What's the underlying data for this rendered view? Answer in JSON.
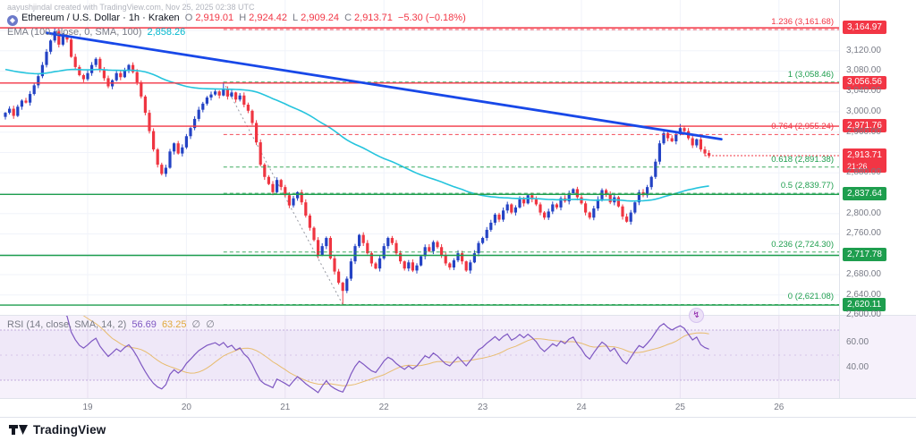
{
  "header": {
    "watermark": "aayushjindal created with TradingView.com, Nov 25, 2025 02:38 UTC"
  },
  "legend": {
    "title": "Ethereum / U.S. Dollar · 1h · Kraken",
    "o_label": "O",
    "o": "2,919.01",
    "h_label": "H",
    "h": "2,924.42",
    "l_label": "L",
    "l": "2,909.24",
    "c_label": "C",
    "c": "2,913.71",
    "change": "−5.30 (−0.18%)"
  },
  "ema_row": {
    "title": "EMA (100, close, 0, SMA, 100)",
    "value": "2,858.26"
  },
  "rsi_row": {
    "title": "RSI (14, close, SMA, 14, 2)",
    "v1": "56.69",
    "v2": "63.25",
    "na1": "∅",
    "na2": "∅"
  },
  "footer": {
    "logo_text": "TradingView"
  },
  "icons": {
    "symbol_logo_glyph": "◆",
    "rsi_flash_glyph": "↯"
  },
  "colors": {
    "up": "#2443c4",
    "down": "#ef3541",
    "ema": "#25c4dd",
    "trend": "#1848e8",
    "line_red": "#f23645",
    "line_green": "#1e9e4e",
    "fib_red": "#f23645",
    "fib_green": "#2ba24f",
    "grid": "#f0f3fa",
    "rsi_line": "#7e57c2",
    "rsi_ma": "#e7b75f",
    "dotted": "#9598a1"
  },
  "chart_data": {
    "type": "candlestick",
    "symbol": "Ethereum / U.S. Dollar",
    "interval": "1h",
    "exchange": "Kraken",
    "ylim": [
      2600,
      3172
    ],
    "grid_prices": [
      2600,
      2640,
      2680,
      2720,
      2760,
      2800,
      2840,
      2880,
      2920,
      2960,
      3000,
      3040,
      3080,
      3120,
      3160
    ],
    "first_open": 2990,
    "closes": [
      2998,
      3006,
      2992,
      3010,
      3022,
      3018,
      3035,
      3052,
      3070,
      3092,
      3118,
      3140,
      3158,
      3132,
      3150,
      3142,
      3108,
      3088,
      3072,
      3064,
      3076,
      3092,
      3104,
      3082,
      3066,
      3050,
      3062,
      3076,
      3068,
      3082,
      3092,
      3078,
      3058,
      3030,
      2998,
      2962,
      2926,
      2896,
      2878,
      2890,
      2922,
      2938,
      2918,
      2930,
      2952,
      2968,
      2986,
      3004,
      3016,
      3028,
      3034,
      3040,
      3032,
      3044,
      3030,
      3038,
      3024,
      3032,
      3014,
      3002,
      2978,
      2940,
      2896,
      2872,
      2858,
      2842,
      2866,
      2852,
      2836,
      2816,
      2830,
      2842,
      2822,
      2796,
      2772,
      2748,
      2718,
      2736,
      2752,
      2712,
      2686,
      2664,
      2648,
      2672,
      2706,
      2736,
      2758,
      2742,
      2722,
      2702,
      2692,
      2712,
      2736,
      2752,
      2742,
      2722,
      2706,
      2692,
      2704,
      2688,
      2698,
      2716,
      2734,
      2726,
      2744,
      2734,
      2718,
      2702,
      2694,
      2708,
      2722,
      2706,
      2688,
      2704,
      2722,
      2742,
      2752,
      2768,
      2782,
      2798,
      2788,
      2806,
      2818,
      2802,
      2812,
      2828,
      2820,
      2836,
      2828,
      2818,
      2802,
      2792,
      2804,
      2818,
      2812,
      2830,
      2824,
      2840,
      2848,
      2832,
      2820,
      2802,
      2792,
      2810,
      2828,
      2846,
      2838,
      2822,
      2832,
      2814,
      2794,
      2784,
      2802,
      2822,
      2842,
      2836,
      2852,
      2872,
      2902,
      2938,
      2958,
      2948,
      2942,
      2956,
      2968,
      2962,
      2948,
      2934,
      2946,
      2926,
      2918,
      2913.71
    ],
    "overrides": {
      "12": {
        "high": 3165
      },
      "53": {
        "high": 3058.46
      },
      "82": {
        "low": 2621.08
      },
      "164": {
        "high": 2976
      },
      "171": {
        "open": 2919.01,
        "high": 2924.42,
        "low": 2909.24,
        "close": 2913.71
      }
    },
    "ema": {
      "period": 100,
      "seed": 3085,
      "last_value": 2858.26
    },
    "rsi": {
      "period": 14,
      "smoothing_period": 14,
      "last_value": 56.69,
      "ma_last_value": 63.25,
      "band": [
        30,
        70
      ]
    },
    "fib_base": {
      "i1": 53,
      "p1": 3058.46,
      "i2": 82,
      "p2": 2621.08
    },
    "fib_levels": [
      {
        "label": "1.236 (3,161.68)",
        "price": 3161.68,
        "color": "red"
      },
      {
        "label": "1 (3,058.46)",
        "price": 3058.46,
        "color": "green"
      },
      {
        "label": "0.764 (2,955.24)",
        "price": 2955.24,
        "color": "red"
      },
      {
        "label": "0.618 (2,891.38)",
        "price": 2891.38,
        "color": "green"
      },
      {
        "label": "0.5 (2,839.77)",
        "price": 2839.77,
        "color": "green"
      },
      {
        "label": "0.236 (2,724.30)",
        "price": 2724.3,
        "color": "green"
      },
      {
        "label": "0 (2,621.08)",
        "price": 2621.08,
        "color": "green"
      }
    ],
    "h_lines": [
      {
        "price": 3164.97,
        "badge": "3,164.97",
        "color": "red"
      },
      {
        "price": 3056.56,
        "badge": "3,056.56",
        "color": "red"
      },
      {
        "price": 2971.76,
        "badge": "2,971.76",
        "color": "red"
      },
      {
        "price": 2837.64,
        "badge": "2,837.64",
        "color": "green"
      },
      {
        "price": 2717.78,
        "badge": "2,717.78",
        "color": "green"
      },
      {
        "price": 2620.11,
        "badge": "2,620.11",
        "color": "green"
      }
    ],
    "current_price": {
      "value": 2913.71,
      "badge": "2,913.71",
      "countdown": "21:26",
      "color": "red"
    },
    "trend_line": {
      "i1": 10,
      "p1": 3155,
      "i2": 174,
      "p2": 2946
    },
    "price_axis_labels": [
      {
        "p": 3120,
        "t": "3,120.00"
      },
      {
        "p": 3080,
        "t": "3,080.00"
      },
      {
        "p": 3040,
        "t": "3,040.00"
      },
      {
        "p": 3000,
        "t": "3,000.00"
      },
      {
        "p": 2960,
        "t": "2,960.00"
      },
      {
        "p": 2880,
        "t": "2,880.00"
      },
      {
        "p": 2800,
        "t": "2,800.00"
      },
      {
        "p": 2760,
        "t": "2,760.00"
      },
      {
        "p": 2680,
        "t": "2,680.00"
      },
      {
        "p": 2640,
        "t": "2,640.00"
      },
      {
        "p": 2600,
        "t": "2,600.00"
      }
    ],
    "rsi_axis_labels": [
      {
        "v": 60,
        "t": "60.00"
      },
      {
        "v": 40,
        "t": "40.00"
      }
    ],
    "time_labels": [
      {
        "i": 20,
        "t": "19"
      },
      {
        "i": 44,
        "t": "20"
      },
      {
        "i": 68,
        "t": "21"
      },
      {
        "i": 92,
        "t": "22"
      },
      {
        "i": 116,
        "t": "23"
      },
      {
        "i": 140,
        "t": "24"
      },
      {
        "i": 164,
        "t": "25"
      },
      {
        "i": 188,
        "t": "26"
      }
    ]
  }
}
